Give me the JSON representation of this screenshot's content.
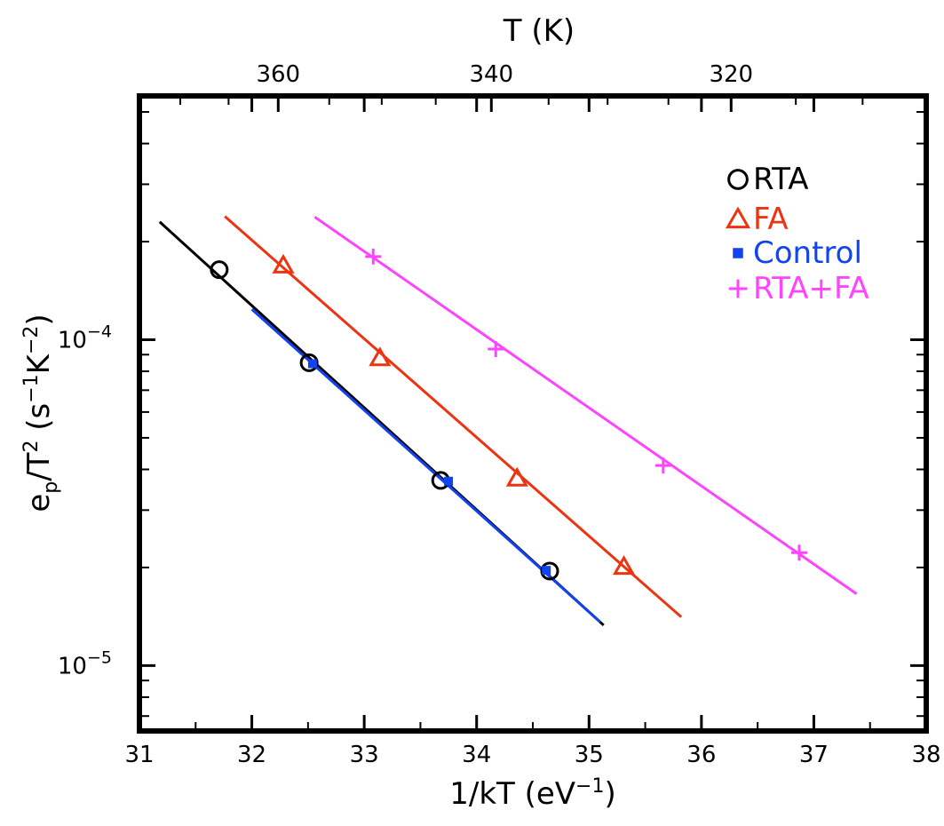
{
  "chart_data": {
    "type": "scatter",
    "xlabel": "1/kT (eV",
    "xlabel_sup": "−1",
    "xlabel_end": ")",
    "top_xlabel": "T (K)",
    "ylabel_base": "e",
    "ylabel_sub": "p",
    "ylabel_mid": "/T",
    "ylabel_sup1": "2",
    "ylabel_open": " (s",
    "ylabel_sup2": "−1",
    "ylabel_k": "K",
    "ylabel_sup3": "−2",
    "ylabel_close": ")",
    "xlim": [
      31,
      38
    ],
    "ylim": [
      6.3e-06,
      0.00056
    ],
    "y_scale": "log",
    "grid": false,
    "legend_position": "top-right",
    "x_ticks": [
      {
        "value": 31,
        "label": "31"
      },
      {
        "value": 32,
        "label": "32"
      },
      {
        "value": 33,
        "label": "33"
      },
      {
        "value": 34,
        "label": "34"
      },
      {
        "value": 35,
        "label": "35"
      },
      {
        "value": 36,
        "label": "36"
      },
      {
        "value": 37,
        "label": "37"
      },
      {
        "value": 38,
        "label": "38"
      }
    ],
    "top_ticks": [
      {
        "value": 360,
        "label": "360"
      },
      {
        "value": 340,
        "label": "340"
      },
      {
        "value": 320,
        "label": "320"
      }
    ],
    "y_major_ticks": [
      {
        "value": 1e-05,
        "base": "10",
        "exp": "−5"
      },
      {
        "value": 0.0001,
        "base": "10",
        "exp": "−4"
      }
    ],
    "series": [
      {
        "name": "RTA",
        "marker": "circle",
        "color": "#000000",
        "x": [
          31.71,
          32.51,
          33.68,
          34.65
        ],
        "y": [
          0.000164,
          8.5e-05,
          3.7e-05,
          1.95e-05
        ],
        "fit_x": [
          31.18,
          35.13
        ],
        "fit_y": [
          0.00023,
          1.33e-05
        ]
      },
      {
        "name": "FA",
        "marker": "triangle",
        "color": "#ee3311",
        "x": [
          32.28,
          33.14,
          34.36,
          35.31
        ],
        "y": [
          0.000169,
          8.78e-05,
          3.75e-05,
          2.01e-05
        ],
        "fit_x": [
          31.76,
          35.82
        ],
        "fit_y": [
          0.000239,
          1.41e-05
        ]
      },
      {
        "name": "Control",
        "marker": "square",
        "color": "#1144ee",
        "x": [
          32.54,
          33.75,
          34.62
        ],
        "y": [
          8.44e-05,
          3.68e-05,
          1.96e-05
        ],
        "fit_x": [
          32.0,
          35.1
        ],
        "fit_y": [
          0.000124,
          1.36e-05
        ]
      },
      {
        "name": "RTA+FA",
        "marker": "plus",
        "color": "#ff44ff",
        "x": [
          33.08,
          34.17,
          35.66,
          36.87
        ],
        "y": [
          0.00018,
          9.36e-05,
          4.11e-05,
          2.22e-05
        ],
        "fit_x": [
          32.56,
          37.38
        ],
        "fit_y": [
          0.000238,
          1.66e-05
        ]
      }
    ]
  }
}
